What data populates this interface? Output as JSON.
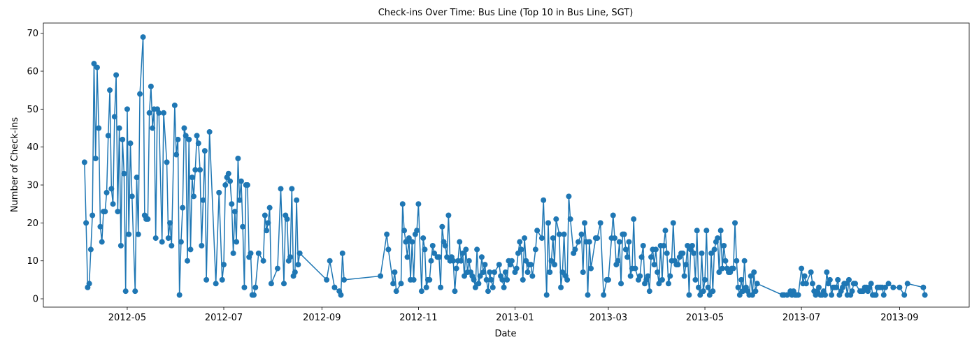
{
  "chart_data": {
    "type": "line",
    "title": "Check-ins Over Time: Bus Line (Top 10 in Bus Line, SGT)",
    "xlabel": "Date",
    "ylabel": "Number of Check-ins",
    "color": "#1f77b4",
    "xlim": [
      "2012-03-09",
      "2013-10-15"
    ],
    "xticks": [
      "2012-05",
      "2012-07",
      "2012-09",
      "2012-11",
      "2013-01",
      "2013-03",
      "2013-05",
      "2013-07",
      "2013-09"
    ],
    "ylim": [
      -2.2,
      72.7
    ],
    "yticks": [
      0,
      10,
      20,
      30,
      40,
      50,
      60,
      70
    ],
    "x": [
      "2012-04-04",
      "2012-04-05",
      "2012-04-06",
      "2012-04-07",
      "2012-04-08",
      "2012-04-09",
      "2012-04-10",
      "2012-04-11",
      "2012-04-12",
      "2012-04-13",
      "2012-04-14",
      "2012-04-15",
      "2012-04-16",
      "2012-04-17",
      "2012-04-18",
      "2012-04-19",
      "2012-04-20",
      "2012-04-21",
      "2012-04-22",
      "2012-04-23",
      "2012-04-24",
      "2012-04-25",
      "2012-04-26",
      "2012-04-27",
      "2012-04-28",
      "2012-04-29",
      "2012-04-30",
      "2012-05-01",
      "2012-05-02",
      "2012-05-03",
      "2012-05-04",
      "2012-05-06",
      "2012-05-07",
      "2012-05-08",
      "2012-05-09",
      "2012-05-11",
      "2012-05-12",
      "2012-05-13",
      "2012-05-14",
      "2012-05-15",
      "2012-05-16",
      "2012-05-17",
      "2012-05-18",
      "2012-05-19",
      "2012-05-20",
      "2012-05-21",
      "2012-05-23",
      "2012-05-24",
      "2012-05-26",
      "2012-05-27",
      "2012-05-28",
      "2012-05-29",
      "2012-05-31",
      "2012-06-01",
      "2012-06-02",
      "2012-06-03",
      "2012-06-04",
      "2012-06-05",
      "2012-06-06",
      "2012-06-07",
      "2012-06-08",
      "2012-06-09",
      "2012-06-10",
      "2012-06-11",
      "2012-06-12",
      "2012-06-13",
      "2012-06-14",
      "2012-06-15",
      "2012-06-16",
      "2012-06-17",
      "2012-06-18",
      "2012-06-19",
      "2012-06-20",
      "2012-06-22",
      "2012-06-26",
      "2012-06-28",
      "2012-06-30",
      "2012-07-01",
      "2012-07-02",
      "2012-07-03",
      "2012-07-04",
      "2012-07-05",
      "2012-07-06",
      "2012-07-07",
      "2012-07-08",
      "2012-07-09",
      "2012-07-10",
      "2012-07-11",
      "2012-07-12",
      "2012-07-13",
      "2012-07-14",
      "2012-07-15",
      "2012-07-16",
      "2012-07-17",
      "2012-07-18",
      "2012-07-19",
      "2012-07-20",
      "2012-07-21",
      "2012-07-23",
      "2012-07-26",
      "2012-07-27",
      "2012-07-28",
      "2012-07-29",
      "2012-07-30",
      "2012-07-31",
      "2012-08-04",
      "2012-08-06",
      "2012-08-08",
      "2012-08-09",
      "2012-08-10",
      "2012-08-11",
      "2012-08-12",
      "2012-08-13",
      "2012-08-14",
      "2012-08-15",
      "2012-08-16",
      "2012-08-17",
      "2012-08-18",
      "2012-09-04",
      "2012-09-06",
      "2012-09-09",
      "2012-09-12",
      "2012-09-13",
      "2012-09-14",
      "2012-09-15",
      "2012-10-08",
      "2012-10-12",
      "2012-10-13",
      "2012-10-16",
      "2012-10-17",
      "2012-10-18",
      "2012-10-21",
      "2012-10-22",
      "2012-10-23",
      "2012-10-24",
      "2012-10-25",
      "2012-10-26",
      "2012-10-27",
      "2012-10-28",
      "2012-10-29",
      "2012-10-30",
      "2012-10-31",
      "2012-11-01",
      "2012-11-03",
      "2012-11-04",
      "2012-11-05",
      "2012-11-06",
      "2012-11-07",
      "2012-11-08",
      "2012-11-09",
      "2012-11-10",
      "2012-11-11",
      "2012-11-13",
      "2012-11-14",
      "2012-11-15",
      "2012-11-16",
      "2012-11-17",
      "2012-11-18",
      "2012-11-19",
      "2012-11-20",
      "2012-11-21",
      "2012-11-22",
      "2012-11-23",
      "2012-11-24",
      "2012-11-25",
      "2012-11-26",
      "2012-11-27",
      "2012-11-28",
      "2012-11-29",
      "2012-11-30",
      "2012-12-01",
      "2012-12-02",
      "2012-12-03",
      "2012-12-04",
      "2012-12-05",
      "2012-12-06",
      "2012-12-07",
      "2012-12-08",
      "2012-12-09",
      "2012-12-10",
      "2012-12-11",
      "2012-12-12",
      "2012-12-13",
      "2012-12-14",
      "2012-12-15",
      "2012-12-16",
      "2012-12-17",
      "2012-12-18",
      "2012-12-19",
      "2012-12-22",
      "2012-12-23",
      "2012-12-24",
      "2012-12-25",
      "2012-12-26",
      "2012-12-27",
      "2012-12-28",
      "2012-12-29",
      "2012-12-30",
      "2013-01-01",
      "2013-01-02",
      "2013-01-03",
      "2013-01-04",
      "2013-01-05",
      "2013-01-06",
      "2013-01-07",
      "2013-01-08",
      "2013-01-09",
      "2013-01-10",
      "2013-01-11",
      "2013-01-12",
      "2013-01-14",
      "2013-01-15",
      "2013-01-18",
      "2013-01-19",
      "2013-01-21",
      "2013-01-22",
      "2013-01-23",
      "2013-01-24",
      "2013-01-25",
      "2013-01-26",
      "2013-01-27",
      "2013-01-29",
      "2013-01-30",
      "2013-01-31",
      "2013-02-01",
      "2013-02-02",
      "2013-02-03",
      "2013-02-04",
      "2013-02-05",
      "2013-02-07",
      "2013-02-08",
      "2013-02-10",
      "2013-02-12",
      "2013-02-13",
      "2013-02-14",
      "2013-02-15",
      "2013-02-16",
      "2013-02-17",
      "2013-02-18",
      "2013-02-21",
      "2013-02-22",
      "2013-02-24",
      "2013-02-26",
      "2013-02-28",
      "2013-03-01",
      "2013-03-03",
      "2013-03-04",
      "2013-03-05",
      "2013-03-06",
      "2013-03-07",
      "2013-03-08",
      "2013-03-09",
      "2013-03-10",
      "2013-03-11",
      "2013-03-12",
      "2013-03-13",
      "2013-03-14",
      "2013-03-15",
      "2013-03-16",
      "2013-03-17",
      "2013-03-18",
      "2013-03-20",
      "2013-03-21",
      "2013-03-22",
      "2013-03-23",
      "2013-03-24",
      "2013-03-25",
      "2013-03-26",
      "2013-03-27",
      "2013-03-28",
      "2013-03-29",
      "2013-03-30",
      "2013-03-31",
      "2013-04-01",
      "2013-04-02",
      "2013-04-03",
      "2013-04-04",
      "2013-04-05",
      "2013-04-06",
      "2013-04-07",
      "2013-04-08",
      "2013-04-09",
      "2013-04-10",
      "2013-04-11",
      "2013-04-12",
      "2013-04-13",
      "2013-04-14",
      "2013-04-15",
      "2013-04-16",
      "2013-04-17",
      "2013-04-18",
      "2013-04-19",
      "2013-04-20",
      "2013-04-21",
      "2013-04-22",
      "2013-04-23",
      "2013-04-24",
      "2013-04-25",
      "2013-04-26",
      "2013-04-27",
      "2013-04-28",
      "2013-04-29",
      "2013-04-30",
      "2013-05-01",
      "2013-05-02",
      "2013-05-03",
      "2013-05-04",
      "2013-05-05",
      "2013-05-06",
      "2013-05-07",
      "2013-05-08",
      "2013-05-09",
      "2013-05-10",
      "2013-05-11",
      "2013-05-12",
      "2013-05-13",
      "2013-05-14",
      "2013-05-15",
      "2013-05-16",
      "2013-05-17",
      "2013-05-18",
      "2013-05-19",
      "2013-05-20",
      "2013-05-21",
      "2013-05-22",
      "2013-05-23",
      "2013-05-24",
      "2013-05-25",
      "2013-05-26",
      "2013-05-27",
      "2013-05-28",
      "2013-05-29",
      "2013-05-30",
      "2013-05-31",
      "2013-06-01",
      "2013-06-02",
      "2013-06-03",
      "2013-06-19",
      "2013-06-20",
      "2013-06-22",
      "2013-06-24",
      "2013-06-25",
      "2013-06-26",
      "2013-06-27",
      "2013-06-28",
      "2013-06-29",
      "2013-07-01",
      "2013-07-02",
      "2013-07-03",
      "2013-07-04",
      "2013-07-07",
      "2013-07-08",
      "2013-07-09",
      "2013-07-10",
      "2013-07-11",
      "2013-07-12",
      "2013-07-13",
      "2013-07-14",
      "2013-07-15",
      "2013-07-16",
      "2013-07-17",
      "2013-07-18",
      "2013-07-19",
      "2013-07-20",
      "2013-07-21",
      "2013-07-22",
      "2013-07-23",
      "2013-07-24",
      "2013-07-25",
      "2013-07-26",
      "2013-07-27",
      "2013-07-28",
      "2013-07-29",
      "2013-07-30",
      "2013-07-31",
      "2013-08-01",
      "2013-08-02",
      "2013-08-03",
      "2013-08-04",
      "2013-08-07",
      "2013-08-08",
      "2013-08-09",
      "2013-08-10",
      "2013-08-11",
      "2013-08-12",
      "2013-08-13",
      "2013-08-14",
      "2013-08-15",
      "2013-08-16",
      "2013-08-17",
      "2013-08-18",
      "2013-08-19",
      "2013-08-20",
      "2013-08-21",
      "2013-08-22",
      "2013-08-23",
      "2013-08-25",
      "2013-08-28",
      "2013-09-01",
      "2013-09-04",
      "2013-09-06",
      "2013-09-16",
      "2013-09-17"
    ],
    "values": [
      36,
      20,
      3,
      4,
      13,
      22,
      62,
      37,
      61,
      45,
      19,
      15,
      23,
      23,
      28,
      43,
      55,
      29,
      25,
      48,
      59,
      23,
      45,
      14,
      42,
      33,
      2,
      50,
      17,
      41,
      27,
      2,
      32,
      17,
      54,
      69,
      22,
      21,
      21,
      49,
      56,
      45,
      50,
      16,
      50,
      49,
      15,
      49,
      36,
      16,
      20,
      14,
      51,
      38,
      42,
      1,
      15,
      24,
      45,
      43,
      10,
      42,
      13,
      32,
      27,
      34,
      43,
      41,
      34,
      14,
      26,
      39,
      5,
      44,
      4,
      28,
      5,
      9,
      30,
      32,
      33,
      31,
      25,
      12,
      23,
      15,
      37,
      26,
      31,
      19,
      3,
      30,
      30,
      11,
      12,
      1,
      1,
      3,
      12,
      10,
      22,
      18,
      20,
      24,
      4,
      8,
      29,
      4,
      22,
      21,
      10,
      11,
      29,
      6,
      7,
      26,
      9,
      12,
      5,
      10,
      3,
      2,
      1,
      12,
      5,
      6,
      17,
      13,
      4,
      7,
      2,
      4,
      25,
      18,
      15,
      11,
      16,
      5,
      15,
      5,
      17,
      18,
      25,
      2,
      16,
      13,
      3,
      5,
      5,
      10,
      14,
      12,
      11,
      11,
      3,
      19,
      15,
      14,
      11,
      22,
      10,
      11,
      10,
      2,
      8,
      10,
      15,
      10,
      12,
      6,
      13,
      7,
      10,
      7,
      6,
      5,
      3,
      13,
      4,
      6,
      11,
      7,
      9,
      5,
      2,
      7,
      5,
      3,
      7,
      9,
      6,
      5,
      3,
      7,
      5,
      10,
      9,
      10,
      7,
      8,
      12,
      15,
      13,
      5,
      16,
      10,
      7,
      9,
      9,
      6,
      13,
      18,
      16,
      26,
      1,
      20,
      7,
      10,
      16,
      9,
      21,
      17,
      3,
      7,
      17,
      6,
      5,
      27,
      21,
      12,
      13,
      15,
      17,
      7,
      20,
      15,
      1,
      15,
      8,
      16,
      16,
      20,
      1,
      5,
      5,
      16,
      22,
      16,
      9,
      10,
      15,
      4,
      17,
      17,
      13,
      11,
      15,
      6,
      8,
      21,
      8,
      5,
      6,
      11,
      14,
      4,
      5,
      6,
      2,
      11,
      13,
      9,
      13,
      7,
      4,
      14,
      5,
      14,
      18,
      12,
      4,
      6,
      10,
      20,
      10,
      9,
      9,
      11,
      12,
      12,
      6,
      9,
      14,
      1,
      13,
      14,
      12,
      5,
      18,
      3,
      1,
      12,
      2,
      5,
      18,
      3,
      1,
      12,
      2,
      13,
      15,
      16,
      7,
      18,
      8,
      14,
      10,
      8,
      7,
      7,
      8,
      8,
      20,
      10,
      3,
      1,
      5,
      2,
      10,
      3,
      2,
      1,
      6,
      1,
      7,
      2,
      4,
      1,
      1,
      1,
      2,
      1,
      2,
      1,
      1,
      1,
      8,
      4,
      6,
      4,
      7,
      4,
      2,
      1,
      2,
      3,
      1,
      1,
      2,
      1,
      7,
      4,
      5,
      1,
      3,
      3,
      3,
      5,
      1,
      2,
      3,
      4,
      4,
      1,
      5,
      1,
      2,
      4,
      4,
      2,
      2,
      2,
      3,
      3,
      2,
      3,
      4,
      1,
      1,
      1,
      3,
      3,
      3,
      3,
      1,
      3,
      4,
      3,
      3,
      1,
      4,
      3,
      1
    ]
  }
}
